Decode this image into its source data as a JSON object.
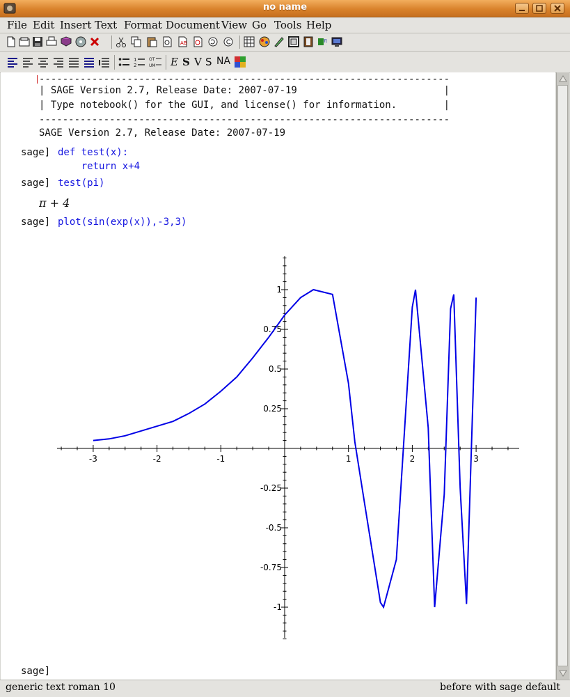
{
  "window": {
    "title": "no name"
  },
  "menu": [
    "File",
    "Edit",
    "Insert",
    "Text",
    "Format",
    "Document",
    "View",
    "Go",
    "Tools",
    "Help"
  ],
  "toolbar_format_letters": {
    "e": "E",
    "s": "S",
    "v": "V",
    "s2": "S",
    "na": "NA"
  },
  "session": {
    "banner_rule": "----------------------------------------------------------------------",
    "banner_line1": "| SAGE Version 2.7, Release Date: 2007-07-19                         |",
    "banner_line2": "| Type notebook() for the GUI, and license() for information.        |",
    "banner_summary": "SAGE Version 2.7, Release Date: 2007-07-19",
    "prompt": "sage]",
    "cmd1_line1": "def test(x):",
    "cmd1_line2": "    return x+4",
    "cmd2": "test(pi)",
    "output2": "π + 4",
    "cmd3": "plot(sin(exp(x)),-3,3)"
  },
  "status": {
    "left": "generic text roman 10",
    "right": "before with sage default"
  },
  "colors": {
    "titlebar": "#d9822b",
    "input_text": "#1515e0",
    "curve": "#0000e6"
  },
  "chart_data": {
    "type": "line",
    "function": "sin(exp(x))",
    "xlim": [
      -3,
      3
    ],
    "ylim": [
      -1,
      1
    ],
    "x_ticks": [
      -3,
      -2,
      -1,
      1,
      2,
      3
    ],
    "y_ticks": [
      -1,
      -0.75,
      -0.5,
      -0.25,
      0.25,
      0.5,
      0.75,
      1
    ],
    "x_tick_labels": [
      "-3",
      "-2",
      "-1",
      "1",
      "2",
      "3"
    ],
    "y_tick_labels": [
      "-1",
      "-0.75",
      "-0.5",
      "-0.25",
      "0.25",
      "0.5",
      "0.75",
      "1"
    ],
    "series": [
      {
        "x": [
          -3,
          -2.75,
          -2.5,
          -2.25,
          -2,
          -1.75,
          -1.5,
          -1.25,
          -1,
          -0.75,
          -0.5,
          -0.25,
          0,
          0.25,
          0.45,
          0.75,
          1,
          1.1,
          1.25,
          1.5,
          1.55,
          1.75,
          2,
          2.05,
          2.25,
          2.35,
          2.5,
          2.6,
          2.65,
          2.75,
          2.85,
          3
        ],
        "y": [
          0.05,
          0.06,
          0.08,
          0.11,
          0.14,
          0.17,
          0.22,
          0.28,
          0.36,
          0.45,
          0.57,
          0.7,
          0.84,
          0.95,
          1.0,
          0.97,
          0.41,
          0.04,
          -0.34,
          -0.97,
          -1.0,
          -0.7,
          0.89,
          1.0,
          0.13,
          -1.0,
          -0.29,
          0.88,
          0.97,
          -0.25,
          -0.98,
          0.95
        ]
      }
    ]
  }
}
